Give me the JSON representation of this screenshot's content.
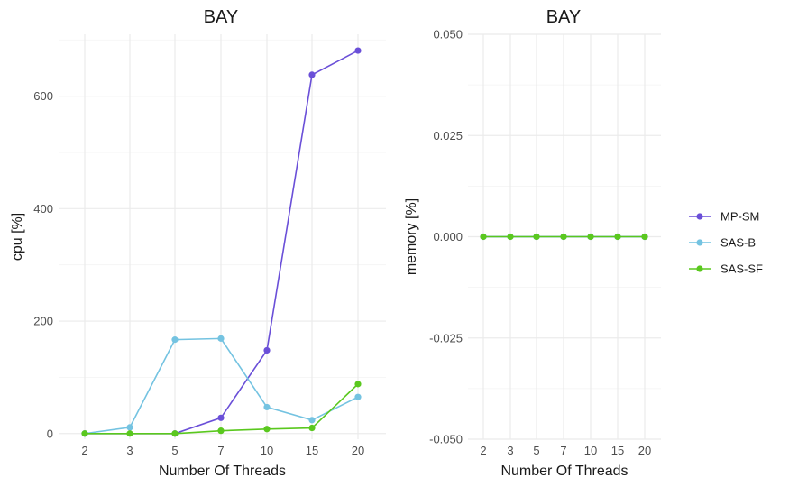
{
  "chart_data": [
    {
      "type": "line",
      "title": "BAY",
      "xlabel": "Number Of Threads",
      "ylabel": "cpu [%]",
      "categories": [
        "2",
        "3",
        "5",
        "7",
        "10",
        "15",
        "20"
      ],
      "yticks": [
        0,
        200,
        400,
        600
      ],
      "ylim": [
        -10,
        710
      ],
      "series": [
        {
          "name": "MP-SM",
          "color": "#6a4fd8",
          "values": [
            0,
            null,
            0,
            28,
            148,
            638,
            681
          ]
        },
        {
          "name": "SAS-B",
          "color": "#74c3e1",
          "values": [
            0,
            11,
            167,
            169,
            47,
            24,
            65
          ]
        },
        {
          "name": "SAS-SF",
          "color": "#5ac81e",
          "values": [
            0,
            0,
            0,
            5,
            8,
            10,
            88
          ]
        }
      ],
      "grid": true
    },
    {
      "type": "line",
      "title": "BAY",
      "xlabel": "Number Of Threads",
      "ylabel": "memory [%]",
      "categories": [
        "2",
        "3",
        "5",
        "7",
        "10",
        "15",
        "20"
      ],
      "yticks": [
        "-0.050",
        "-0.025",
        "0.000",
        "0.025",
        "0.050"
      ],
      "ylim": [
        -0.05,
        0.05
      ],
      "series": [
        {
          "name": "MP-SM",
          "color": "#6a4fd8",
          "values": [
            0,
            null,
            0,
            0,
            0,
            0,
            0
          ]
        },
        {
          "name": "SAS-B",
          "color": "#74c3e1",
          "values": [
            0,
            0,
            0,
            0,
            0,
            0,
            0
          ]
        },
        {
          "name": "SAS-SF",
          "color": "#5ac81e",
          "values": [
            0,
            0,
            0,
            0,
            0,
            0,
            0
          ]
        }
      ],
      "grid": true
    }
  ],
  "legend": {
    "placement": "right",
    "items": [
      {
        "label": "MP-SM",
        "color": "#6a4fd8"
      },
      {
        "label": "SAS-B",
        "color": "#74c3e1"
      },
      {
        "label": "SAS-SF",
        "color": "#5ac81e"
      }
    ]
  }
}
